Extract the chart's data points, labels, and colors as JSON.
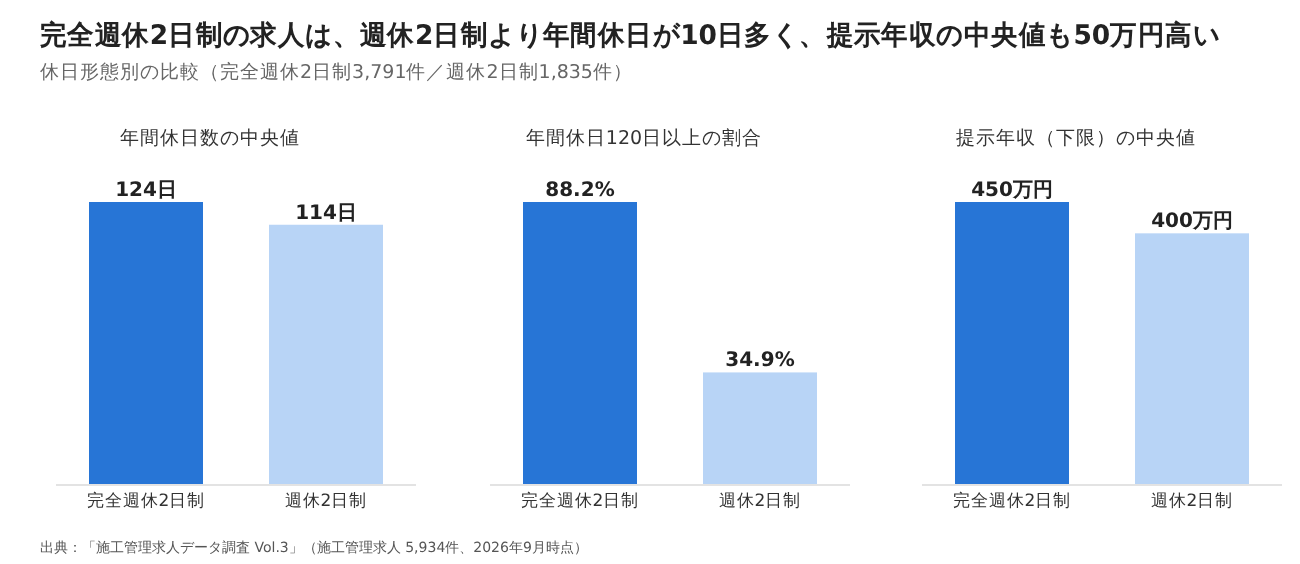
{
  "chart_data": [
    {
      "type": "other",
      "title": "完全週休2日制の求人は、週休2日制より年間休日が10日多く、提示年収の中央値も50万円高い",
      "subtitle": "休日形態別の比較（完全週休2日制3,791件／週休2日制1,835件）",
      "annotations": [
        "出典：「施工管理求人データ調査 Vol.3」（施工管理求人 5,934件、2026年9月時点）"
      ]
    },
    {
      "type": "bar",
      "title": "年間休日数の中央値",
      "categories": [
        "完全週休2日制",
        "週休2日制"
      ],
      "values": [
        124,
        114
      ],
      "colors": [
        "#2775d6",
        "#b8d4f6"
      ],
      "data_labels": true,
      "value_labels": [
        "124日",
        "114日"
      ]
    },
    {
      "type": "bar",
      "title": "年間休日120日以上の割合",
      "categories": [
        "完全週休2日制",
        "週休2日制"
      ],
      "values": [
        88.2,
        34.9
      ],
      "colors": [
        "#2775d6",
        "#b8d4f6"
      ],
      "data_labels": true,
      "value_labels": [
        "88.2%",
        "34.9%"
      ]
    },
    {
      "type": "bar",
      "title": "提示年収（下限）の中央値",
      "categories": [
        "完全週休2日制",
        "週休2日制"
      ],
      "values": [
        450,
        400
      ],
      "colors": [
        "#2775d6",
        "#b8d4f6"
      ],
      "data_labels": true,
      "value_labels": [
        "450万円",
        "400万円"
      ]
    }
  ]
}
